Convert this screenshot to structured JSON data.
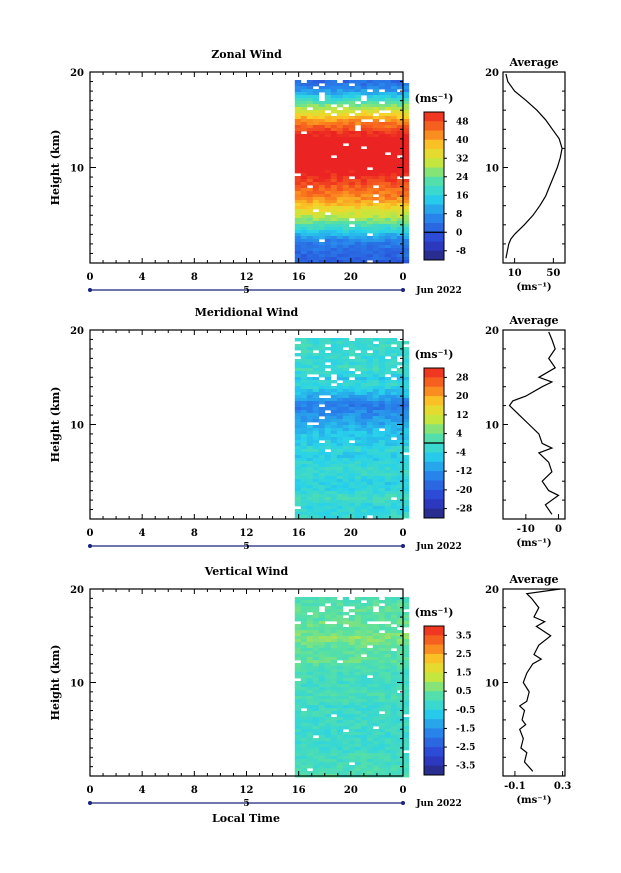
{
  "figure": {
    "xlabel": "Local Time",
    "date_label": "Jun 2022",
    "day_label": "5",
    "x_ticks": [
      "0",
      "4",
      "8",
      "12",
      "16",
      "20",
      "0"
    ],
    "y_ticks": [
      "20",
      "10"
    ],
    "ylabel": "Height (km)",
    "unit_label": "(ms⁻¹)",
    "avg_title": "Average"
  },
  "chart_data": [
    {
      "type": "heatmap",
      "title": "Zonal Wind",
      "ylabel": "Height (km)",
      "xlim_hours": [
        0,
        24
      ],
      "ylim_km": [
        0,
        20
      ],
      "data_start_hour": 15.7,
      "colorbar": {
        "ticks": [
          "48",
          "40",
          "32",
          "24",
          "16",
          "8",
          "0",
          "-8"
        ],
        "range": [
          -12,
          52
        ],
        "zero_line": 0
      },
      "profile": {
        "title": "Average",
        "xticks": [
          "10",
          "50"
        ],
        "xlim": [
          -2,
          62
        ],
        "tick_values": [
          10,
          50
        ],
        "heights_km": [
          0.5,
          1,
          1.5,
          2,
          2.5,
          3,
          4,
          5,
          6,
          7,
          8,
          9,
          10,
          11,
          12,
          13,
          14,
          15,
          16,
          17,
          18,
          19,
          19.8
        ],
        "values": [
          1,
          2,
          3,
          4,
          6,
          10,
          20,
          29,
          36,
          42,
          46,
          50,
          54,
          57,
          59,
          56,
          49,
          42,
          33,
          22,
          10,
          3,
          1
        ]
      }
    },
    {
      "type": "heatmap",
      "title": "Meridional Wind",
      "ylabel": "Height (km)",
      "xlim_hours": [
        0,
        24
      ],
      "ylim_km": [
        0,
        20
      ],
      "data_start_hour": 15.7,
      "colorbar": {
        "ticks": [
          "28",
          "20",
          "12",
          "4",
          "-4",
          "-12",
          "-20",
          "-28"
        ],
        "range": [
          -32,
          32
        ],
        "zero_line": 0
      },
      "profile": {
        "title": "Average",
        "xticks": [
          "-10",
          "0"
        ],
        "xlim": [
          -17,
          2
        ],
        "tick_values": [
          -10,
          0
        ],
        "heights_km": [
          0.5,
          1.5,
          2.5,
          3,
          4,
          5,
          6,
          7,
          7.5,
          8,
          9,
          10,
          11,
          12,
          12.5,
          13,
          14,
          14.5,
          15,
          16,
          17,
          18,
          19,
          19.8
        ],
        "values": [
          -2,
          -4,
          0,
          -3,
          -5,
          -2,
          -3,
          -6,
          -2,
          -5,
          -6,
          -9,
          -12,
          -15,
          -14,
          -10,
          -5,
          -2,
          -6,
          -1,
          -3,
          -1,
          -2,
          -3
        ]
      }
    },
    {
      "type": "heatmap",
      "title": "Vertical Wind",
      "ylabel": "Height (km)",
      "xlim_hours": [
        0,
        24
      ],
      "ylim_km": [
        0,
        20
      ],
      "data_start_hour": 15.7,
      "colorbar": {
        "ticks": [
          "3.5",
          "2.5",
          "1.5",
          "0.5",
          "-0.5",
          "-1.5",
          "-2.5",
          "-3.5"
        ],
        "range": [
          -4,
          4
        ]
      },
      "profile": {
        "title": "Average",
        "xticks": [
          "-0.1",
          "0.3"
        ],
        "xlim": [
          -0.2,
          0.32
        ],
        "tick_values": [
          -0.1,
          0.3
        ],
        "heights_km": [
          0.5,
          1.5,
          2.5,
          3,
          4,
          5,
          5.5,
          6,
          7,
          7.5,
          8,
          9,
          10,
          11,
          12,
          12.5,
          13,
          14,
          15,
          16,
          16.5,
          17,
          18,
          19,
          19.5,
          20
        ],
        "values": [
          0.05,
          -0.02,
          0.0,
          -0.05,
          -0.03,
          -0.06,
          -0.01,
          -0.04,
          -0.02,
          -0.06,
          0.0,
          0.02,
          -0.03,
          0.0,
          0.05,
          0.12,
          0.06,
          0.1,
          0.2,
          0.08,
          0.15,
          0.06,
          0.1,
          0.04,
          0.0,
          0.28
        ]
      }
    }
  ]
}
